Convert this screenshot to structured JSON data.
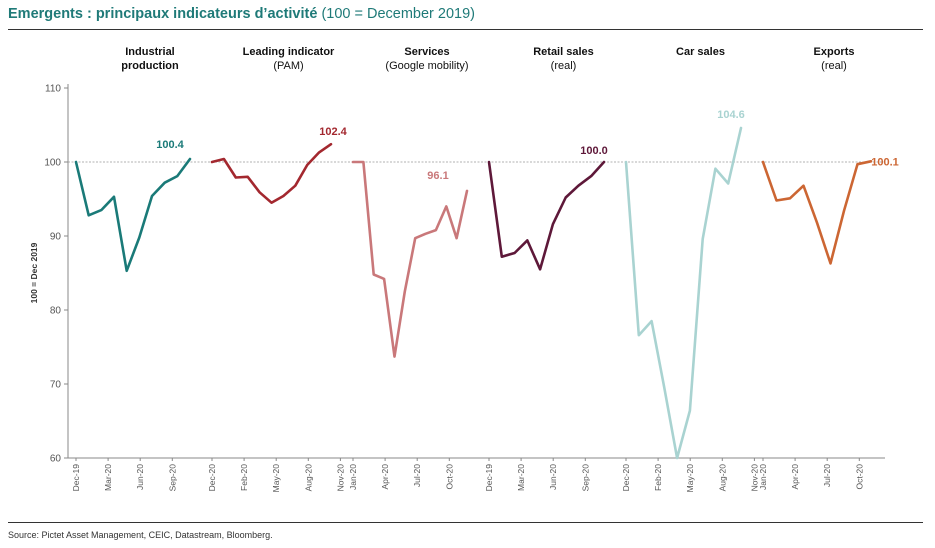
{
  "header": {
    "title_bold": "Emergents : principaux indicateurs d’activité",
    "title_regular": "(100 = December 2019)"
  },
  "footer": {
    "source": "Source: Pictet Asset Management, CEIC, Datastream, Bloomberg."
  },
  "chart_data": {
    "type": "line",
    "ylabel": "100 = Dec 2019",
    "ylim": [
      60,
      110
    ],
    "yticks": [
      60,
      70,
      80,
      90,
      100,
      110
    ],
    "reference_line": 100,
    "panels": [
      {
        "title": "Industrial production",
        "title_lines": [
          "Industrial",
          "production"
        ],
        "subtitle": "",
        "color": "#1a7a78",
        "x_tick_labels": [
          "Dec-19",
          "Mar-20",
          "Jun-20",
          "Sep-20"
        ],
        "values": [
          100,
          92.8,
          93.5,
          95.3,
          85.3,
          89.8,
          95.4,
          97.2,
          98.1,
          100.4
        ],
        "end_label": "100.4"
      },
      {
        "title": "Leading indicator",
        "title_lines": [
          "Leading indicator"
        ],
        "subtitle": "(PAM)",
        "color": "#a3282f",
        "x_tick_labels": [
          "Dec-20",
          "Feb-20",
          "May-20",
          "Aug-20",
          "Nov-20"
        ],
        "values": [
          100,
          100.4,
          97.9,
          98.0,
          95.9,
          94.5,
          95.4,
          96.8,
          99.6,
          101.3,
          102.4
        ],
        "end_label": "102.4"
      },
      {
        "title": "Services",
        "title_lines": [
          "Services"
        ],
        "subtitle": "(Google mobility)",
        "color": "#c9787a",
        "x_tick_labels": [
          "Jan-20",
          "Apr-20",
          "Jul-20",
          "Oct-20"
        ],
        "values": [
          100,
          100,
          84.8,
          84.2,
          73.7,
          82.5,
          89.7,
          90.3,
          90.8,
          94.0,
          89.7,
          96.1
        ],
        "end_label": "96.1"
      },
      {
        "title": "Retail sales",
        "title_lines": [
          "Retail sales"
        ],
        "subtitle": "(real)",
        "color": "#5e1839",
        "x_tick_labels": [
          "Dec-19",
          "Mar-20",
          "Jun-20",
          "Sep-20"
        ],
        "values": [
          100,
          87.2,
          87.7,
          89.4,
          85.5,
          91.6,
          95.2,
          96.8,
          98.1,
          100.0
        ],
        "end_label": "100.0"
      },
      {
        "title": "Car sales",
        "title_lines": [
          "Car sales"
        ],
        "subtitle": "",
        "color": "#a9d3d1",
        "x_tick_labels": [
          "Dec-20",
          "Feb-20",
          "May-20",
          "Aug-20",
          "Nov-20"
        ],
        "values": [
          100,
          76.6,
          78.5,
          69.5,
          60.0,
          66.4,
          89.6,
          99.1,
          97.1,
          104.6
        ],
        "end_label": "104.6"
      },
      {
        "title": "Exports",
        "title_lines": [
          "Exports"
        ],
        "subtitle": "(real)",
        "color": "#cc6633",
        "x_tick_labels": [
          "Jan-20",
          "Apr-20",
          "Jul-20",
          "Oct-20"
        ],
        "values": [
          100,
          94.8,
          95.1,
          96.8,
          91.8,
          86.3,
          93.4,
          99.7,
          100.1
        ],
        "end_label": "100.1"
      }
    ]
  }
}
